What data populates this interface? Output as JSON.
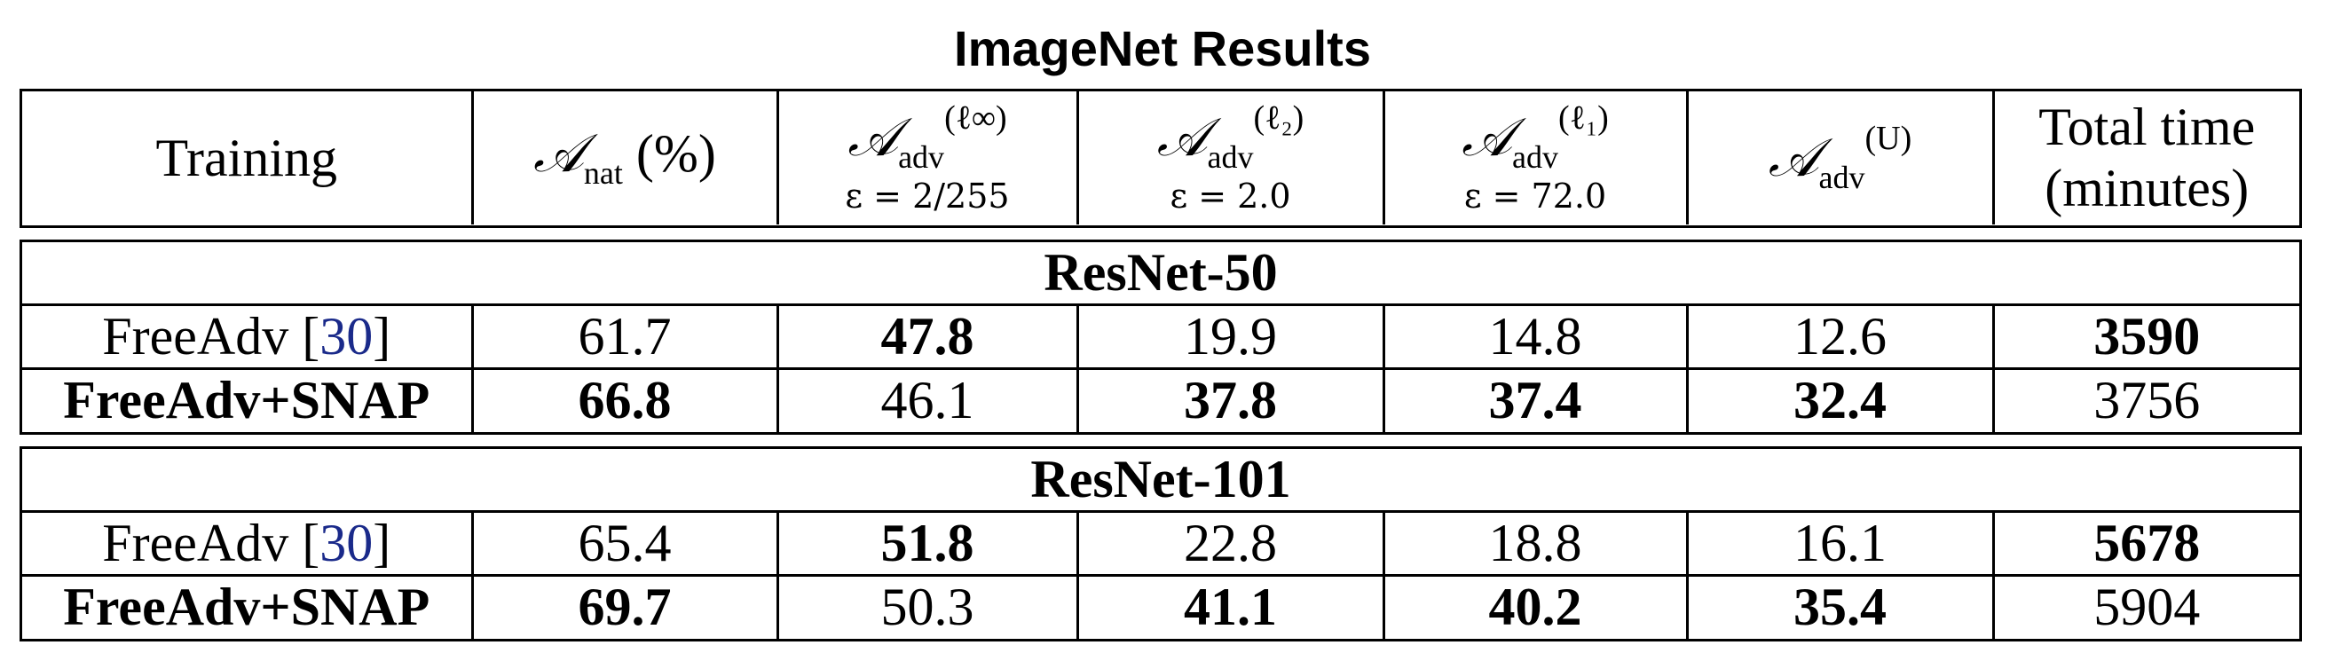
{
  "title": "ImageNet Results",
  "header": {
    "training": "Training",
    "nat": "𝒜",
    "nat_sub": "nat",
    "nat_unit": "(%)",
    "adv_letter": "𝒜",
    "adv_sub": "adv",
    "linf_sup": "(ℓ∞)",
    "linf_eps": "ε = 2/255",
    "l2_sup": "(ℓ₂)",
    "l2_eps": "ε = 2.0",
    "l1_sup": "(ℓ₁)",
    "l1_eps": "ε = 72.0",
    "u_sup": "(U)",
    "time_line1": "Total time",
    "time_line2": "(minutes)"
  },
  "sections": [
    {
      "name": "ResNet-50",
      "rows": [
        {
          "training": "FreeAdv",
          "cite": "30",
          "values": [
            "61.7",
            "47.8",
            "19.9",
            "14.8",
            "12.6",
            "3590"
          ],
          "bold": [
            false,
            true,
            false,
            false,
            false,
            true
          ]
        },
        {
          "training": "FreeAdv+SNAP",
          "cite": "",
          "values": [
            "66.8",
            "46.1",
            "37.8",
            "37.4",
            "32.4",
            "3756"
          ],
          "bold": [
            true,
            false,
            true,
            true,
            true,
            false
          ]
        }
      ]
    },
    {
      "name": "ResNet-101",
      "rows": [
        {
          "training": "FreeAdv",
          "cite": "30",
          "values": [
            "65.4",
            "51.8",
            "22.8",
            "18.8",
            "16.1",
            "5678"
          ],
          "bold": [
            false,
            true,
            false,
            false,
            false,
            true
          ]
        },
        {
          "training": "FreeAdv+SNAP",
          "cite": "",
          "values": [
            "69.7",
            "50.3",
            "41.1",
            "40.2",
            "35.4",
            "5904"
          ],
          "bold": [
            true,
            false,
            true,
            true,
            true,
            false
          ]
        }
      ]
    }
  ]
}
